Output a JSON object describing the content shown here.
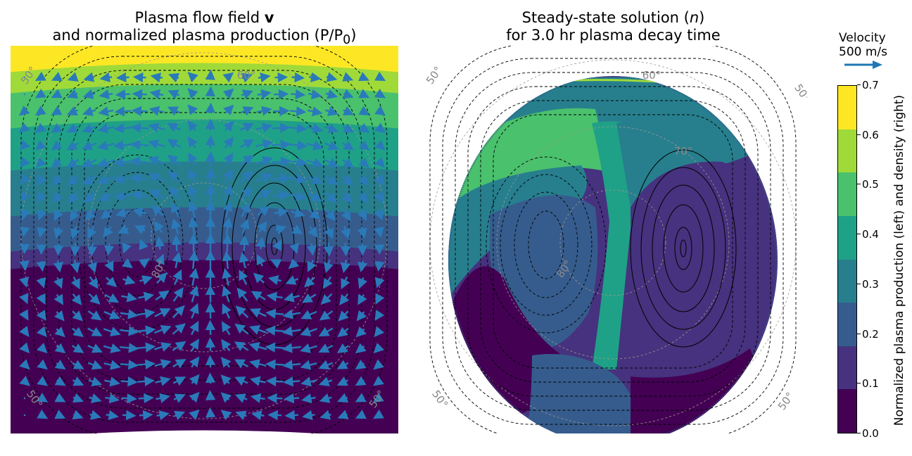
{
  "chart_data": [
    {
      "type": "heatmap",
      "title_line1_text": "Plasma flow field ",
      "title_line1_bold": "v",
      "title_line2": "and normalized plasma production (P/P",
      "title_line2_sub": "0",
      "title_line2_end": ")",
      "description_fields": "filled contours of normalized plasma production with velocity vectors and potential contours",
      "production_bands": [
        0.0,
        0.1,
        0.2,
        0.3,
        0.4,
        0.5,
        0.6,
        0.7
      ],
      "latitude_labels": [
        "50°",
        "60°",
        "70°",
        "80°"
      ],
      "vortex_centers": [
        {
          "label": "left",
          "sense": "counterclockwise"
        },
        {
          "label": "right",
          "sense": "clockwise"
        }
      ]
    },
    {
      "type": "heatmap",
      "title_line1": "Steady-state solution (",
      "title_line1_var": "n",
      "title_line1_end": ")",
      "title_line2": "for 3.0 hr plasma decay time",
      "latitude_labels": [
        "50°",
        "60°",
        "70°",
        "80°"
      ]
    }
  ],
  "legend": {
    "velocity_label": "Velocity",
    "velocity_value": "500 m/s",
    "arrow_color": "#1f77b4"
  },
  "colorbar": {
    "ticks": [
      "0.0",
      "0.1",
      "0.2",
      "0.3",
      "0.4",
      "0.5",
      "0.6",
      "0.7"
    ],
    "label": "Normalized plasma production (left) and density (right)",
    "colors": [
      "#440154",
      "#46327e",
      "#365c8d",
      "#277f8e",
      "#1fa187",
      "#4ac16d",
      "#a0da39",
      "#fde725"
    ],
    "range": [
      0.0,
      0.7
    ]
  }
}
